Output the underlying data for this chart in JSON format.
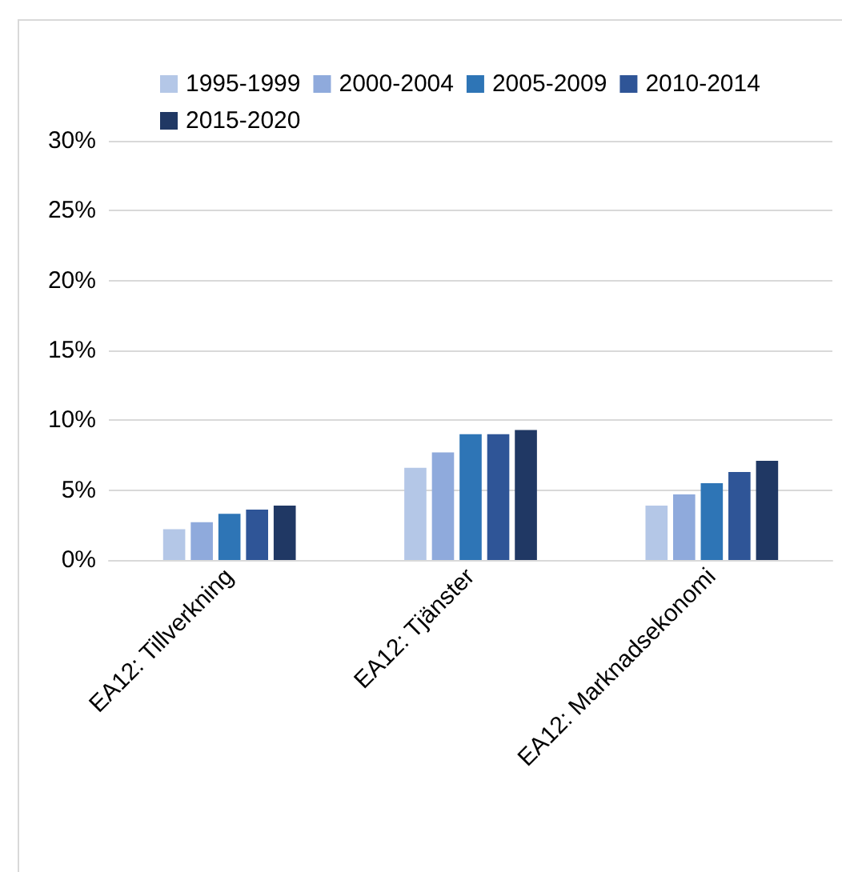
{
  "chart_data": {
    "type": "bar",
    "categories": [
      "EA12: Tillverkning",
      "EA12: Tjänster",
      "EA12: Marknadsekonomi"
    ],
    "series": [
      {
        "name": "1995-1999",
        "color": "#b4c7e7",
        "values": [
          2.2,
          6.6,
          3.9
        ]
      },
      {
        "name": "2000-2004",
        "color": "#8faadc",
        "values": [
          2.7,
          7.7,
          4.7
        ]
      },
      {
        "name": "2005-2009",
        "color": "#2e75b6",
        "values": [
          3.3,
          9.0,
          5.5
        ]
      },
      {
        "name": "2010-2014",
        "color": "#2f5597",
        "values": [
          3.6,
          9.0,
          6.3
        ]
      },
      {
        "name": "2015-2020",
        "color": "#203864",
        "values": [
          3.9,
          9.3,
          7.1
        ]
      }
    ],
    "ylim": [
      0,
      30
    ],
    "yticks": [
      {
        "value": 0,
        "label": "0%"
      },
      {
        "value": 5,
        "label": "5%"
      },
      {
        "value": 10,
        "label": "10%"
      },
      {
        "value": 15,
        "label": "15%"
      },
      {
        "value": 20,
        "label": "20%"
      },
      {
        "value": 25,
        "label": "25%"
      },
      {
        "value": 30,
        "label": "30%"
      }
    ],
    "grid": "y",
    "legend": "top"
  }
}
